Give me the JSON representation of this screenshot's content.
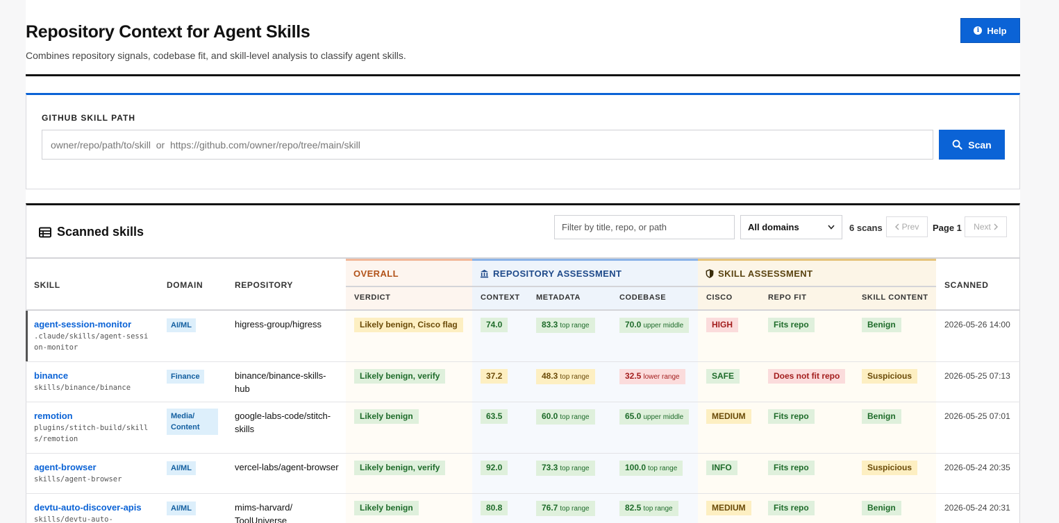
{
  "header": {
    "title": "Repository Context for Agent Skills",
    "subtitle": "Combines repository signals, codebase fit, and skill-level analysis to classify agent skills.",
    "help_label": "Help"
  },
  "scan": {
    "label": "GITHUB SKILL PATH",
    "placeholder": "owner/repo/path/to/skill  or  https://github.com/owner/repo/tree/main/skill",
    "button_label": "Scan"
  },
  "skills": {
    "title": "Scanned skills",
    "filter_placeholder": "Filter by title, repo, or path",
    "domain_select": "All domains",
    "count": "6 scans",
    "prev_label": "Prev",
    "page_label": "Page 1",
    "next_label": "Next"
  },
  "table": {
    "headers": {
      "skill": "SKILL",
      "domain": "DOMAIN",
      "repository": "REPOSITORY",
      "overall": "OVERALL",
      "repo_assessment": "REPOSITORY ASSESSMENT",
      "skill_assessment": "SKILL ASSESSMENT",
      "scanned": "SCANNED",
      "verdict": "VERDICT",
      "context": "CONTEXT",
      "metadata": "METADATA",
      "codebase": "CODEBASE",
      "cisco": "CISCO",
      "repo_fit": "REPO FIT",
      "skill_content": "SKILL CONTENT"
    },
    "rows": [
      {
        "name": "agent-session-monitor",
        "path": ".claude/skills/agent-session-monitor",
        "domain": "AI/ML",
        "repo": "higress-group/higress",
        "verdict": "Likely benign, Cisco flag",
        "context": "74.0",
        "metadata": "83.3",
        "metadata_range": "top range",
        "codebase": "70.0",
        "codebase_range": "upper middle",
        "cisco": "HIGH",
        "repo_fit": "Fits repo",
        "content": "Benign",
        "scanned": "2026-05-26 14:00"
      },
      {
        "name": "binance",
        "path": "skills/binance/binance",
        "domain": "Finance",
        "repo": "binance/binance-skills-hub",
        "verdict": "Likely benign, verify",
        "context": "37.2",
        "metadata": "48.3",
        "metadata_range": "top range",
        "codebase": "32.5",
        "codebase_range": "lower range",
        "cisco": "SAFE",
        "repo_fit": "Does not fit repo",
        "content": "Suspicious",
        "scanned": "2026-05-25 07:13"
      },
      {
        "name": "remotion",
        "path": "plugins/stitch-build/skills/remotion",
        "domain": "Media/ Content",
        "repo": "google-labs-code/stitch-skills",
        "verdict": "Likely benign",
        "context": "63.5",
        "metadata": "60.0",
        "metadata_range": "top range",
        "codebase": "65.0",
        "codebase_range": "upper middle",
        "cisco": "MEDIUM",
        "repo_fit": "Fits repo",
        "content": "Benign",
        "scanned": "2026-05-25 07:01"
      },
      {
        "name": "agent-browser",
        "path": "skills/agent-browser",
        "domain": "AI/ML",
        "repo": "vercel-labs/agent-browser",
        "verdict": "Likely benign, verify",
        "context": "92.0",
        "metadata": "73.3",
        "metadata_range": "top range",
        "codebase": "100.0",
        "codebase_range": "top range",
        "cisco": "INFO",
        "repo_fit": "Fits repo",
        "content": "Suspicious",
        "scanned": "2026-05-24 20:35"
      },
      {
        "name": "devtu-auto-discover-apis",
        "path": "skills/devtu-auto-",
        "domain": "AI/ML",
        "repo": "mims-harvard/ ToolUniverse",
        "verdict": "Likely benign",
        "context": "80.8",
        "metadata": "76.7",
        "metadata_range": "top range",
        "codebase": "82.5",
        "codebase_range": "top range",
        "cisco": "MEDIUM",
        "repo_fit": "Fits repo",
        "content": "Benign",
        "scanned": "2026-05-24 20:31"
      }
    ]
  },
  "colors": {
    "accent": "#0b63d6",
    "good": "#dff0dc",
    "warn": "#fdefc2",
    "bad": "#fbdcdc"
  },
  "icons": {
    "help": "info-circle-icon",
    "scan": "search-icon",
    "table": "table-icon",
    "repo_group": "bank-icon",
    "skill_group": "shield-icon"
  }
}
